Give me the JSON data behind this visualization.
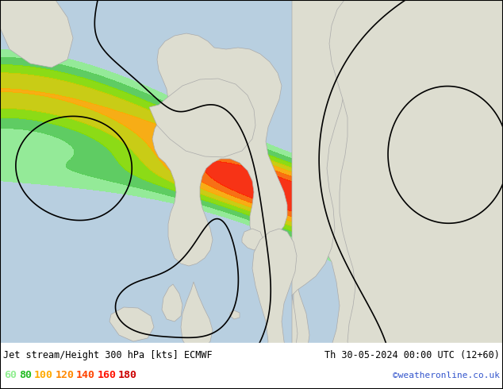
{
  "title_left": "Jet stream/Height 300 hPa [kts] ECMWF",
  "title_right": "Th 30-05-2024 00:00 UTC (12+60)",
  "credit": "©weatheronline.co.uk",
  "legend_values": [
    60,
    80,
    100,
    120,
    140,
    160,
    180
  ],
  "legend_colors": [
    "#90ee90",
    "#22bb22",
    "#ffaa00",
    "#ff8800",
    "#ff4400",
    "#ff1100",
    "#cc0000"
  ],
  "ocean_color": "#b8cfe0",
  "land_color": "#ddddd0",
  "land_edge": "#aaaaaa",
  "bottom_bar_color": "#ffffff",
  "contour_color": "#000000",
  "credit_color": "#3355cc",
  "jet_colors": [
    "#90ee90",
    "#44cc44",
    "#88dd00",
    "#cccc00",
    "#ffaa00",
    "#ff6600",
    "#ff2200"
  ],
  "jet_levels": [
    60,
    80,
    100,
    120,
    140,
    160,
    180,
    220
  ]
}
